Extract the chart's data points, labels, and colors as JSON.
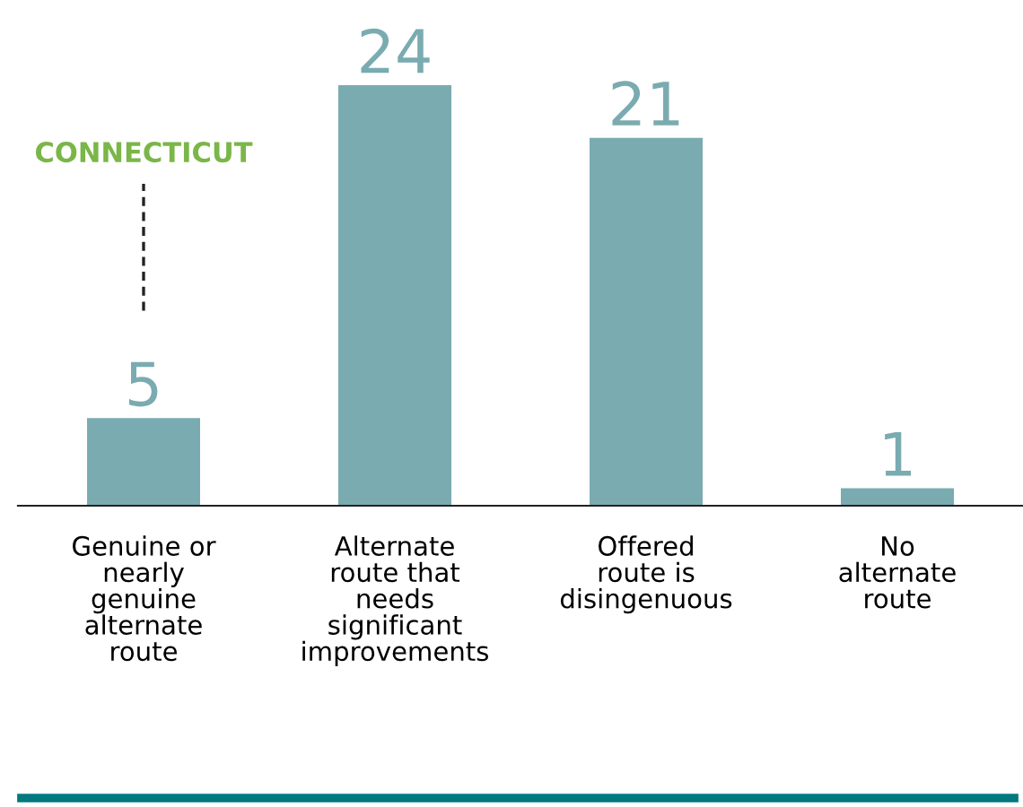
{
  "chart_data": {
    "type": "bar",
    "categories": [
      "Genuine or\nnearly\ngenuine\nalternate\nroute",
      "Alternate\nroute that\nneeds\nsignificant\nimprovements",
      "Offered\nroute is\ndisingenuous",
      "No\nalternate\nroute"
    ],
    "values": [
      5,
      24,
      21,
      1
    ],
    "color": "#7aabb0",
    "data_labels": true,
    "grid": false,
    "legend": false,
    "annotations": [
      "CONNECTICUT"
    ]
  }
}
